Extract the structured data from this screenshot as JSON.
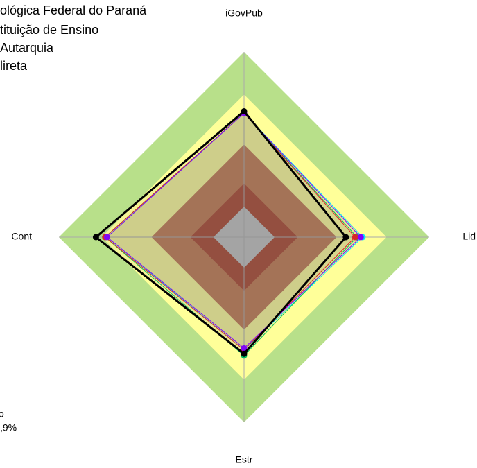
{
  "chart_data": {
    "type": "radar",
    "annotations": [
      "ológica Federal do Paraná",
      "tituição de Ensino",
      "Autarquia",
      "lireta",
      "o",
      ",9%"
    ],
    "axes": [
      "iGovPub",
      "Lid",
      "Estr",
      "Cont"
    ],
    "rlim": [
      0,
      1
    ],
    "bands": [
      {
        "value": 1.0,
        "color": "#b8e08a"
      },
      {
        "value": 0.77,
        "color": "#ffff99"
      },
      {
        "value": 0.5,
        "color": "#c1784c"
      },
      {
        "value": 0.29,
        "color": "#a8412a"
      },
      {
        "value": 0.165,
        "color": "#c0c0c0"
      }
    ],
    "series": [
      {
        "color": "#00e5ff",
        "values": [
          0.67,
          0.64,
          0.61,
          0.74
        ]
      },
      {
        "color": "#00c060",
        "values": [
          0.67,
          0.61,
          0.64,
          0.75
        ]
      },
      {
        "color": "#e02020",
        "values": [
          0.67,
          0.6,
          0.61,
          0.75
        ]
      },
      {
        "color": "#8000ff",
        "values": [
          0.67,
          0.63,
          0.6,
          0.74
        ]
      },
      {
        "color": "#000000",
        "values": [
          0.68,
          0.55,
          0.63,
          0.8
        ]
      }
    ]
  }
}
